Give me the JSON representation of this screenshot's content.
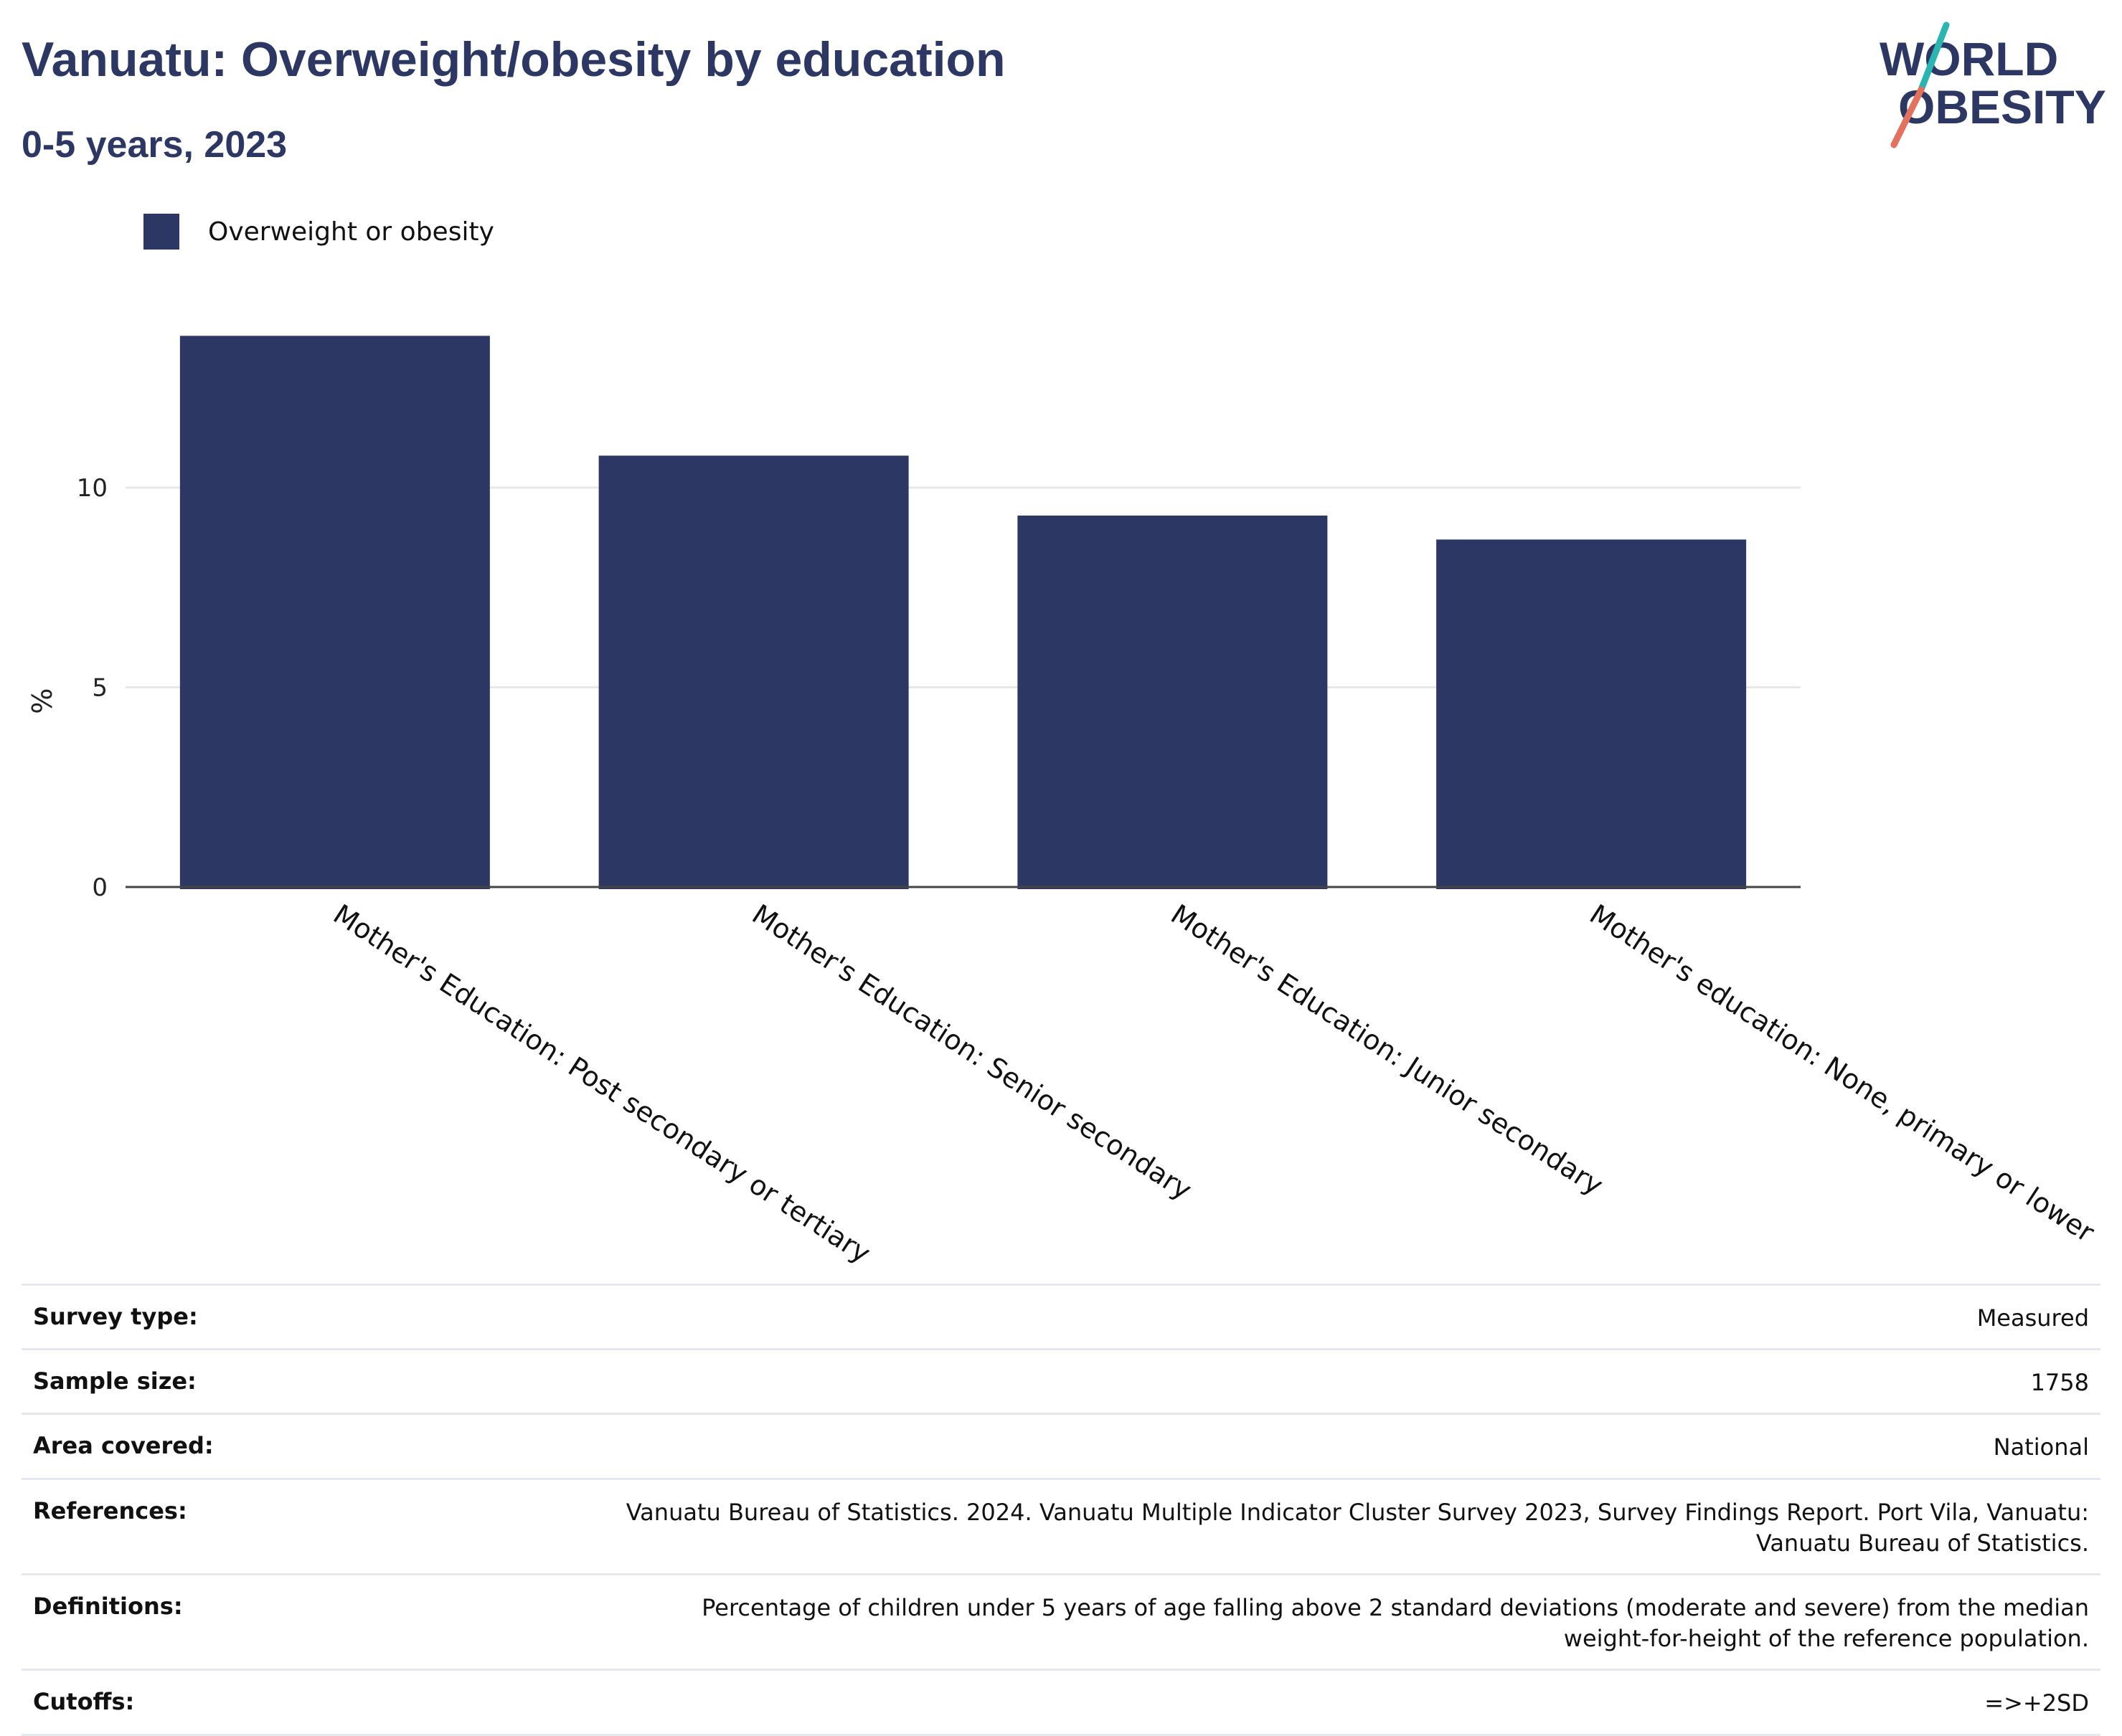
{
  "header": {
    "title": "Vanuatu: Overweight/obesity by education",
    "subtitle": "0-5 years, 2023"
  },
  "logo": {
    "line1": "WORLD",
    "line2": "OBESITY",
    "icon": "world-obesity-logo"
  },
  "colors": {
    "bar": "#2c3763",
    "accent_teal": "#2bb5b2",
    "accent_red": "#e4705e"
  },
  "chart_data": {
    "type": "bar",
    "categories": [
      "Mother's Education: Post secondary or tertiary",
      "Mother's Education: Senior secondary",
      "Mother's Education: Junior secondary",
      "Mother's education: None, primary or lower"
    ],
    "series": [
      {
        "name": "Overweight or obesity",
        "values": [
          13.8,
          10.8,
          9.3,
          8.7
        ]
      }
    ],
    "ylabel": "%",
    "xlabel": "",
    "ylim": [
      0,
      15
    ],
    "yticks": [
      0,
      5,
      10
    ],
    "grid": true,
    "legend": "top-left"
  },
  "meta": {
    "rows": [
      {
        "label": "Survey type:",
        "value": "Measured"
      },
      {
        "label": "Sample size:",
        "value": "1758"
      },
      {
        "label": "Area covered:",
        "value": "National"
      },
      {
        "label": "References:",
        "value": "Vanuatu Bureau of Statistics. 2024. Vanuatu Multiple Indicator Cluster Survey 2023, Survey Findings Report. Port Vila, Vanuatu: Vanuatu Bureau of Statistics."
      },
      {
        "label": "Definitions:",
        "value": "Percentage of children under 5 years of age falling above 2 standard deviations (moderate and severe) from the median weight-for-height of the reference population."
      },
      {
        "label": "Cutoffs:",
        "value": "=>+2SD"
      }
    ]
  }
}
